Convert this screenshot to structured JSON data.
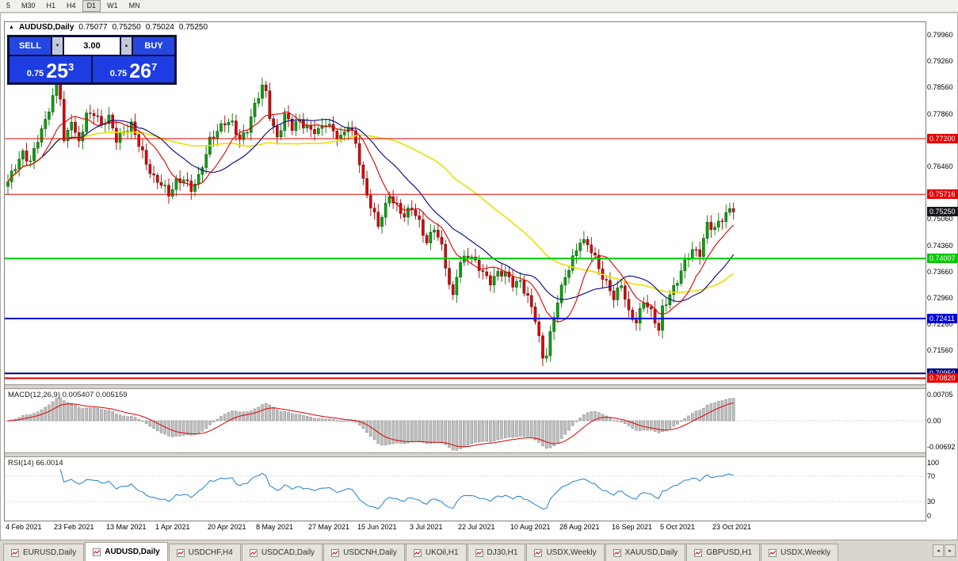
{
  "toolbar": {
    "items": [
      "5",
      "M30",
      "H1",
      "H4",
      "D1",
      "W1",
      "MN"
    ],
    "active_index": 4
  },
  "chart_header": {
    "collapse_icon": "▲",
    "symbol": "AUDUSD,Daily",
    "open": "0.75077",
    "high": "0.75250",
    "low": "0.75024",
    "close": "0.75250"
  },
  "trade_panel": {
    "sell_label": "SELL",
    "buy_label": "BUY",
    "volume": "3.00",
    "decrease_icon": "▼",
    "increase_icon": "▲",
    "sell_price": {
      "small": "0.75",
      "big": "25",
      "sup": "3"
    },
    "buy_price": {
      "small": "0.75",
      "big": "26",
      "sup": "7"
    }
  },
  "price_axis": {
    "ticks": [
      "0.79960",
      "0.79260",
      "0.78560",
      "0.77860",
      "0.76460",
      "0.75060",
      "0.74360",
      "0.73660",
      "0.72960",
      "0.72260",
      "0.71560"
    ]
  },
  "levels": [
    {
      "price": 0.772,
      "label": "0.77200",
      "color": "#e60000",
      "line_width": 1
    },
    {
      "price": 0.75716,
      "label": "0.75716",
      "color": "#e60000",
      "line_width": 1
    },
    {
      "price": 0.7525,
      "label": "0.75250",
      "color": "#15181c",
      "line_width": 0
    },
    {
      "price": 0.74007,
      "label": "0.74007",
      "color": "#00cc00",
      "line_width": 2
    },
    {
      "price": 0.72411,
      "label": "0.72411",
      "color": "#0000e0",
      "line_width": 2
    },
    {
      "price": 0.7095,
      "label": "0.70950",
      "color": "#000080",
      "line_width": 2
    },
    {
      "price": 0.7082,
      "label": "0.70820",
      "color": "#e60000",
      "line_width": 2
    }
  ],
  "macd_panel": {
    "label": "MACD(12,26,9) 0.005407 0.005159",
    "axis_values": [
      "0.00705",
      "0.00",
      "-0.00692"
    ]
  },
  "rsi_panel": {
    "label": "RSI(14) 66.0014",
    "axis_values": [
      "100",
      "70",
      "30",
      "0"
    ]
  },
  "date_axis": [
    {
      "i": 0,
      "t": "4 Feb 2021"
    },
    {
      "i": 13,
      "t": "23 Feb 2021"
    },
    {
      "i": 27,
      "t": "13 Mar 2021"
    },
    {
      "i": 40,
      "t": "1 Apr 2021"
    },
    {
      "i": 54,
      "t": "20 Apr 2021"
    },
    {
      "i": 67,
      "t": "8 May 2021"
    },
    {
      "i": 81,
      "t": "27 May 2021"
    },
    {
      "i": 94,
      "t": "15 Jun 2021"
    },
    {
      "i": 108,
      "t": "3 Jul 2021"
    },
    {
      "i": 121,
      "t": "22 Jul 2021"
    },
    {
      "i": 135,
      "t": "10 Aug 2021"
    },
    {
      "i": 148,
      "t": "28 Aug 2021"
    },
    {
      "i": 162,
      "t": "16 Sep 2021"
    },
    {
      "i": 175,
      "t": "5 Oct 2021"
    },
    {
      "i": 189,
      "t": "23 Oct 2021"
    }
  ],
  "tabs": {
    "items": [
      "EURUSD,Daily",
      "AUDUSD,Daily",
      "USDCHF,H4",
      "USDCAD,Daily",
      "USDCNH,Daily",
      "UKOil,H1",
      "DJ30,H1",
      "USDX,Weekly",
      "XAUUSD,Daily",
      "GBPUSD,H1",
      "USDX,Weekly"
    ],
    "active_index": 1,
    "scroll_left_icon": "◂",
    "scroll_right_icon": "▸"
  },
  "chart_data": {
    "type": "candlestick+indicators",
    "symbol": "AUDUSD",
    "timeframe": "Daily",
    "count": 195,
    "x_step": 4.72,
    "last_close": 0.7525,
    "price_max": 0.803,
    "price_min": 0.7066,
    "bull_color": "#00a400",
    "bear_color": "#dc0000",
    "close_anchors": [
      [
        0,
        0.7605
      ],
      [
        2,
        0.764
      ],
      [
        4,
        0.768
      ],
      [
        6,
        0.7665
      ],
      [
        8,
        0.772
      ],
      [
        10,
        0.776
      ],
      [
        12,
        0.783
      ],
      [
        13,
        0.7865
      ],
      [
        14,
        0.784
      ],
      [
        15,
        0.7715
      ],
      [
        16,
        0.774
      ],
      [
        17,
        0.777
      ],
      [
        18,
        0.7725
      ],
      [
        19,
        0.7705
      ],
      [
        21,
        0.7785
      ],
      [
        23,
        0.7795
      ],
      [
        25,
        0.7755
      ],
      [
        27,
        0.777
      ],
      [
        29,
        0.772
      ],
      [
        31,
        0.7745
      ],
      [
        33,
        0.7755
      ],
      [
        35,
        0.77
      ],
      [
        37,
        0.7655
      ],
      [
        39,
        0.762
      ],
      [
        41,
        0.76
      ],
      [
        43,
        0.7565
      ],
      [
        45,
        0.7605
      ],
      [
        47,
        0.762
      ],
      [
        49,
        0.7585
      ],
      [
        51,
        0.761
      ],
      [
        53,
        0.768
      ],
      [
        54,
        0.772
      ],
      [
        56,
        0.7745
      ],
      [
        58,
        0.776
      ],
      [
        60,
        0.7755
      ],
      [
        62,
        0.772
      ],
      [
        64,
        0.775
      ],
      [
        66,
        0.7805
      ],
      [
        68,
        0.7855
      ],
      [
        69,
        0.784
      ],
      [
        70,
        0.7785
      ],
      [
        72,
        0.7725
      ],
      [
        74,
        0.778
      ],
      [
        76,
        0.7745
      ],
      [
        78,
        0.777
      ],
      [
        80,
        0.7755
      ],
      [
        81,
        0.7745
      ],
      [
        83,
        0.7735
      ],
      [
        85,
        0.776
      ],
      [
        87,
        0.7745
      ],
      [
        89,
        0.7725
      ],
      [
        91,
        0.775
      ],
      [
        93,
        0.7705
      ],
      [
        95,
        0.761
      ],
      [
        97,
        0.7545
      ],
      [
        99,
        0.7485
      ],
      [
        101,
        0.7535
      ],
      [
        102,
        0.757
      ],
      [
        104,
        0.7545
      ],
      [
        106,
        0.7515
      ],
      [
        108,
        0.753
      ],
      [
        110,
        0.7495
      ],
      [
        112,
        0.745
      ],
      [
        114,
        0.7485
      ],
      [
        116,
        0.7425
      ],
      [
        118,
        0.733
      ],
      [
        119,
        0.73
      ],
      [
        120,
        0.7365
      ],
      [
        121,
        0.7395
      ],
      [
        123,
        0.741
      ],
      [
        125,
        0.7385
      ],
      [
        127,
        0.7365
      ],
      [
        129,
        0.7345
      ],
      [
        131,
        0.736
      ],
      [
        133,
        0.7355
      ],
      [
        135,
        0.7335
      ],
      [
        137,
        0.7345
      ],
      [
        139,
        0.7295
      ],
      [
        141,
        0.7235
      ],
      [
        143,
        0.7135
      ],
      [
        144,
        0.7155
      ],
      [
        145,
        0.7205
      ],
      [
        147,
        0.729
      ],
      [
        149,
        0.7345
      ],
      [
        151,
        0.74
      ],
      [
        153,
        0.7455
      ],
      [
        155,
        0.744
      ],
      [
        157,
        0.7395
      ],
      [
        159,
        0.735
      ],
      [
        161,
        0.7325
      ],
      [
        162,
        0.73
      ],
      [
        164,
        0.733
      ],
      [
        166,
        0.725
      ],
      [
        168,
        0.7235
      ],
      [
        170,
        0.7295
      ],
      [
        172,
        0.7255
      ],
      [
        174,
        0.7205
      ],
      [
        175,
        0.7265
      ],
      [
        177,
        0.731
      ],
      [
        179,
        0.7345
      ],
      [
        181,
        0.7385
      ],
      [
        183,
        0.742
      ],
      [
        185,
        0.742
      ],
      [
        187,
        0.7495
      ],
      [
        189,
        0.7475
      ],
      [
        191,
        0.7505
      ],
      [
        193,
        0.7535
      ],
      [
        194,
        0.7525
      ]
    ],
    "moving_averages": [
      {
        "color": "#e8e000",
        "period": 50,
        "width": 1.6
      },
      {
        "color": "#000080",
        "period": 21,
        "width": 1.1
      },
      {
        "color": "#dd0000",
        "period": 10,
        "width": 1.1
      }
    ],
    "macd": {
      "fast": 12,
      "slow": 26,
      "signal": 9
    },
    "macd_range": 0.0078,
    "rsi": {
      "period": 14,
      "levels": [
        70,
        30
      ]
    }
  }
}
